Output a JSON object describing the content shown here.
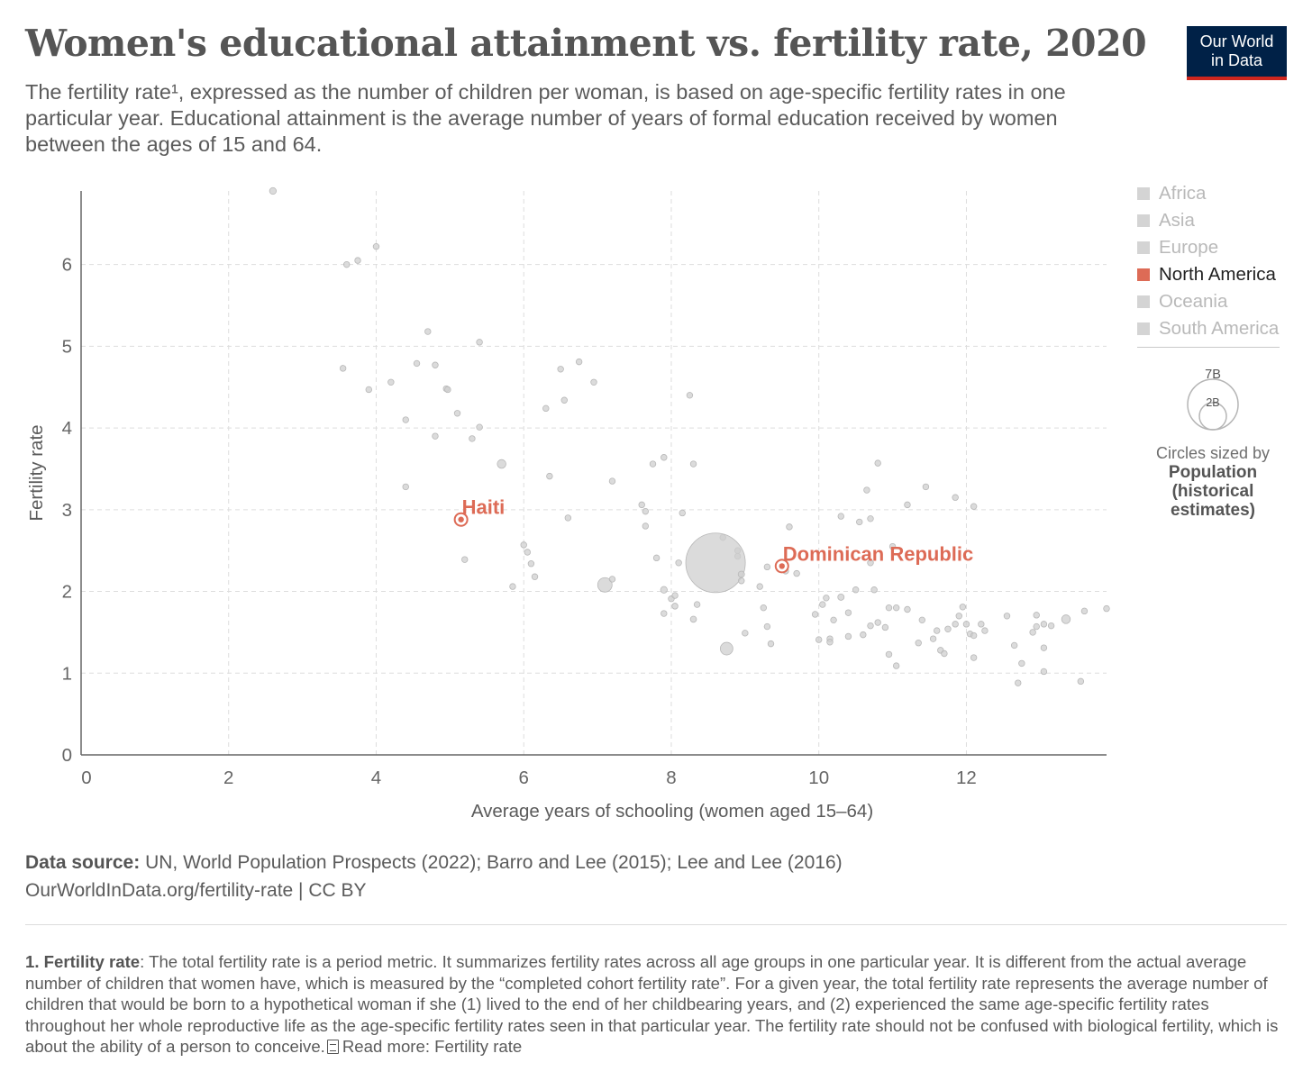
{
  "header": {
    "title": "Women's educational attainment vs. fertility rate, 2020",
    "subtitle": "The fertility rate¹, expressed as the number of children per woman, is based on age-specific fertility rates in one particular year. Educational attainment is the average number of years of formal education received by women between the ages of 15 and 64.",
    "logo_line1": "Our World",
    "logo_line2": "in Data"
  },
  "legend": {
    "items": [
      {
        "label": "Africa",
        "active": false
      },
      {
        "label": "Asia",
        "active": false
      },
      {
        "label": "Europe",
        "active": false
      },
      {
        "label": "North America",
        "active": true
      },
      {
        "label": "Oceania",
        "active": false
      },
      {
        "label": "South America",
        "active": false
      }
    ],
    "size_large": "7B",
    "size_small": "2B",
    "size_caption": "Circles sized by",
    "size_variable": "Population (historical estimates)"
  },
  "colors": {
    "highlight": "#dd6b56",
    "inactive": "#cfcfcf",
    "inactive_stroke": "#b8b8b8",
    "grid": "#dddddd",
    "axis": "#666666"
  },
  "chart_data": {
    "type": "scatter",
    "xlabel": "Average years of schooling (women aged 15–64)",
    "ylabel": "Fertility rate",
    "xlim": [
      0,
      13.9
    ],
    "ylim": [
      0,
      6.9
    ],
    "xticks": [
      0,
      2,
      4,
      6,
      8,
      10,
      12
    ],
    "yticks": [
      0,
      1,
      2,
      3,
      4,
      5,
      6
    ],
    "grid": true,
    "size_variable": "Population (historical estimates)",
    "highlighted": [
      {
        "label": "Haiti",
        "x": 5.15,
        "y": 2.88,
        "pop": 11.4
      },
      {
        "label": "Dominican Republic",
        "x": 9.5,
        "y": 2.31,
        "pop": 10.9
      }
    ],
    "points": [
      [
        2.6,
        6.9,
        18
      ],
      [
        3.6,
        6.0,
        13
      ],
      [
        3.75,
        6.05,
        11
      ],
      [
        4.0,
        6.22,
        13
      ],
      [
        4.7,
        5.18,
        12
      ],
      [
        5.4,
        5.05,
        14
      ],
      [
        3.55,
        4.73,
        10
      ],
      [
        4.2,
        4.56,
        11
      ],
      [
        3.9,
        4.47,
        11
      ],
      [
        4.55,
        4.79,
        13
      ],
      [
        4.8,
        4.77,
        12
      ],
      [
        4.95,
        4.48,
        9
      ],
      [
        4.97,
        4.47,
        9
      ],
      [
        5.1,
        4.18,
        12
      ],
      [
        4.4,
        4.1,
        13
      ],
      [
        5.4,
        4.01,
        12
      ],
      [
        4.8,
        3.9,
        14
      ],
      [
        5.3,
        3.87,
        12
      ],
      [
        4.4,
        3.28,
        11
      ],
      [
        5.7,
        3.56,
        30
      ],
      [
        6.5,
        4.72,
        13
      ],
      [
        6.75,
        4.81,
        12
      ],
      [
        6.95,
        4.56,
        14
      ],
      [
        6.3,
        4.24,
        13
      ],
      [
        6.55,
        4.34,
        12
      ],
      [
        6.35,
        3.41,
        11
      ],
      [
        7.2,
        3.35,
        11
      ],
      [
        6.6,
        2.9,
        11
      ],
      [
        7.6,
        3.06,
        12
      ],
      [
        7.65,
        2.98,
        11
      ],
      [
        7.65,
        2.8,
        10
      ],
      [
        7.75,
        3.56,
        10
      ],
      [
        7.9,
        3.64,
        14
      ],
      [
        8.25,
        4.4,
        14
      ],
      [
        8.3,
        3.56,
        11
      ],
      [
        8.15,
        2.96,
        12
      ],
      [
        8.7,
        2.66,
        12
      ],
      [
        8.9,
        2.5,
        13
      ],
      [
        8.9,
        2.43,
        11
      ],
      [
        8.6,
        2.35,
        1410
      ],
      [
        9.55,
        2.25,
        11
      ],
      [
        9.3,
        2.3,
        13
      ],
      [
        9.7,
        2.22,
        13
      ],
      [
        9.6,
        2.79,
        12
      ],
      [
        8.95,
        2.21,
        16
      ],
      [
        8.95,
        2.13,
        10
      ],
      [
        9.2,
        2.06,
        9
      ],
      [
        6.0,
        2.57,
        14
      ],
      [
        6.05,
        2.48,
        12
      ],
      [
        6.1,
        2.34,
        10
      ],
      [
        6.15,
        2.18,
        13
      ],
      [
        5.85,
        2.06,
        12
      ],
      [
        5.2,
        2.39,
        11
      ],
      [
        7.1,
        2.08,
        83
      ],
      [
        7.2,
        2.15,
        10
      ],
      [
        7.8,
        2.41,
        11
      ],
      [
        8.1,
        2.35,
        11
      ],
      [
        7.9,
        2.02,
        18
      ],
      [
        8.0,
        1.91,
        12
      ],
      [
        8.05,
        1.95,
        11
      ],
      [
        8.05,
        1.82,
        12
      ],
      [
        7.9,
        1.73,
        12
      ],
      [
        8.35,
        1.84,
        10
      ],
      [
        8.75,
        1.3,
        63
      ],
      [
        8.3,
        1.66,
        15
      ],
      [
        9.25,
        1.8,
        11
      ],
      [
        9.3,
        1.57,
        12
      ],
      [
        9.35,
        1.36,
        12
      ],
      [
        9.0,
        1.49,
        12
      ],
      [
        10.3,
        2.92,
        14
      ],
      [
        10.55,
        2.85,
        11
      ],
      [
        10.65,
        3.24,
        12
      ],
      [
        10.7,
        2.89,
        13
      ],
      [
        10.8,
        3.57,
        11
      ],
      [
        11.2,
        3.06,
        12
      ],
      [
        11.45,
        3.28,
        12
      ],
      [
        11.85,
        3.15,
        12
      ],
      [
        12.1,
        3.04,
        11
      ],
      [
        10.7,
        2.35,
        11
      ],
      [
        11.0,
        2.55,
        11
      ],
      [
        9.95,
        1.72,
        12
      ],
      [
        10.05,
        1.84,
        12
      ],
      [
        10.1,
        1.92,
        14
      ],
      [
        10.2,
        1.65,
        11
      ],
      [
        10.15,
        1.42,
        12
      ],
      [
        10.3,
        1.93,
        16
      ],
      [
        10.4,
        1.74,
        12
      ],
      [
        10.5,
        2.02,
        13
      ],
      [
        10.75,
        2.02,
        12
      ],
      [
        10.6,
        1.47,
        13
      ],
      [
        10.7,
        1.58,
        12
      ],
      [
        10.8,
        1.62,
        13
      ],
      [
        10.9,
        1.56,
        12
      ],
      [
        10.95,
        1.8,
        13
      ],
      [
        11.05,
        1.8,
        12
      ],
      [
        11.2,
        1.78,
        13
      ],
      [
        11.35,
        1.37,
        11
      ],
      [
        11.4,
        1.65,
        12
      ],
      [
        11.55,
        1.42,
        12
      ],
      [
        11.6,
        1.52,
        12
      ],
      [
        11.65,
        1.28,
        13
      ],
      [
        11.7,
        1.24,
        12
      ],
      [
        11.75,
        1.54,
        11
      ],
      [
        11.85,
        1.6,
        12
      ],
      [
        11.9,
        1.7,
        13
      ],
      [
        11.95,
        1.81,
        12
      ],
      [
        12.0,
        1.6,
        14
      ],
      [
        12.05,
        1.48,
        12
      ],
      [
        12.1,
        1.46,
        13
      ],
      [
        12.1,
        1.19,
        12
      ],
      [
        12.2,
        1.6,
        12
      ],
      [
        12.25,
        1.52,
        12
      ],
      [
        12.55,
        1.7,
        12
      ],
      [
        12.65,
        1.34,
        12
      ],
      [
        12.75,
        1.12,
        12
      ],
      [
        12.9,
        1.5,
        13
      ],
      [
        12.95,
        1.71,
        12
      ],
      [
        12.95,
        1.57,
        14
      ],
      [
        13.05,
        1.6,
        12
      ],
      [
        13.05,
        1.31,
        14
      ],
      [
        13.15,
        1.58,
        12
      ],
      [
        13.35,
        1.66,
        30
      ],
      [
        13.6,
        1.76,
        11
      ],
      [
        13.9,
        1.79,
        11
      ],
      [
        12.7,
        0.88,
        12
      ],
      [
        13.05,
        1.02,
        12
      ],
      [
        13.55,
        0.9,
        12
      ],
      [
        11.05,
        1.09,
        11
      ],
      [
        10.95,
        1.23,
        11
      ],
      [
        10.4,
        1.45,
        12
      ],
      [
        10.15,
        1.38,
        11
      ],
      [
        10.0,
        1.41,
        11
      ]
    ]
  },
  "source": {
    "label": "Data source:",
    "text": "UN, World Population Prospects (2022); Barro and Lee (2015); Lee and Lee (2016)",
    "url": "OurWorldInData.org/fertility-rate | CC BY"
  },
  "footnote": {
    "label": "1. Fertility rate",
    "text": ": The total fertility rate is a period metric. It summarizes fertility rates across all age groups in one particular year. It is different from the actual average number of children that women have, which is measured by the “completed cohort fertility rate”. For a given year, the total fertility rate represents the average number of children that would be born to a hypothetical woman if she (1) lived to the end of her childbearing years, and (2) experienced the same age-specific fertility rates throughout her whole reproductive life as the age-specific fertility rates seen in that particular year. The fertility rate should not be confused with biological fertility, which is about the ability of a person to conceive.",
    "read_more": "Read more: Fertility rate"
  }
}
